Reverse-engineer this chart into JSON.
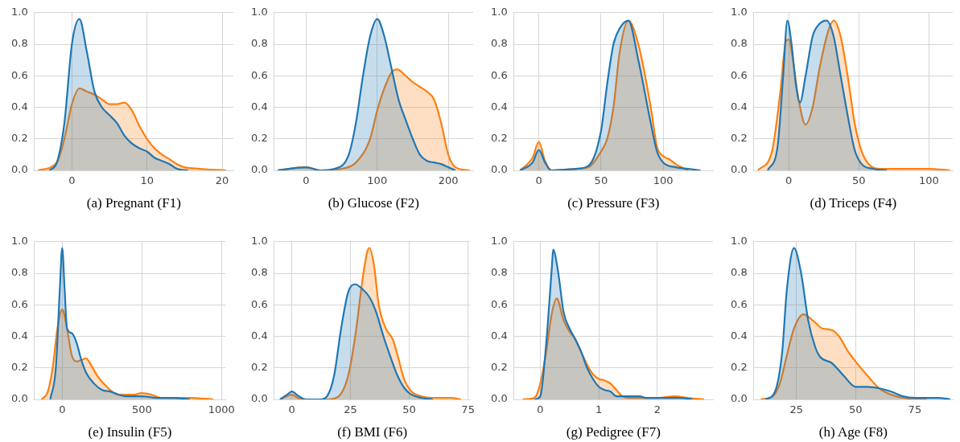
{
  "chart_data": [
    {
      "type": "area",
      "xlabel": "(a) Pregnant (F1)",
      "xlim": [
        -5,
        21.5
      ],
      "xticks": [
        0,
        10,
        20
      ],
      "ylim": [
        0,
        1
      ],
      "yticks": [
        {
          "value": 0,
          "label": "0.0"
        },
        {
          "value": 0.2,
          "label": "0.2"
        },
        {
          "value": 0.4,
          "label": "0.4"
        },
        {
          "value": 0.6,
          "label": "0.6"
        },
        {
          "value": 0.8,
          "label": "0.8"
        },
        {
          "value": 1,
          "label": "1.0"
        }
      ],
      "grid": true,
      "series": [
        {
          "color": "#1f77b4",
          "x": [
            -3,
            -2,
            -1,
            0,
            1,
            2,
            3,
            4,
            5,
            6,
            7,
            8,
            9,
            10,
            11,
            12,
            13,
            14,
            15.5
          ],
          "values": [
            0,
            0.05,
            0.3,
            0.8,
            0.96,
            0.75,
            0.5,
            0.4,
            0.35,
            0.3,
            0.22,
            0.17,
            0.14,
            0.12,
            0.08,
            0.06,
            0.04,
            0.01,
            0
          ]
        },
        {
          "color": "#ff7f0e",
          "x": [
            -4.5,
            -2,
            -1,
            0,
            1,
            2,
            3,
            4,
            5,
            6,
            7,
            8,
            9,
            10,
            11,
            12,
            13,
            14,
            15,
            17,
            20.5
          ],
          "values": [
            0,
            0.05,
            0.2,
            0.42,
            0.52,
            0.5,
            0.48,
            0.45,
            0.42,
            0.42,
            0.43,
            0.38,
            0.28,
            0.2,
            0.14,
            0.1,
            0.07,
            0.04,
            0.02,
            0.01,
            0
          ]
        }
      ]
    },
    {
      "type": "area",
      "xlabel": "(b) Glucose (F2)",
      "xlim": [
        -45,
        235
      ],
      "xticks": [
        0,
        100,
        200
      ],
      "ylim": [
        0,
        1
      ],
      "yticks": [
        {
          "value": 0,
          "label": "0.0"
        },
        {
          "value": 0.2,
          "label": "0.2"
        },
        {
          "value": 0.4,
          "label": "0.4"
        },
        {
          "value": 0.6,
          "label": "0.6"
        },
        {
          "value": 0.8,
          "label": "0.8"
        },
        {
          "value": 1,
          "label": "1.0"
        }
      ],
      "grid": true,
      "series": [
        {
          "color": "#1f77b4",
          "x": [
            -40,
            0,
            20,
            40,
            60,
            70,
            80,
            90,
            100,
            110,
            120,
            130,
            140,
            150,
            160,
            170,
            180,
            190,
            200,
            210
          ],
          "values": [
            0,
            0.02,
            0,
            0.01,
            0.1,
            0.3,
            0.6,
            0.85,
            0.96,
            0.85,
            0.65,
            0.45,
            0.32,
            0.2,
            0.1,
            0.06,
            0.05,
            0.04,
            0.02,
            0
          ]
        },
        {
          "color": "#ff7f0e",
          "x": [
            -40,
            0,
            20,
            50,
            70,
            90,
            100,
            110,
            120,
            128,
            140,
            150,
            160,
            170,
            180,
            190,
            200,
            210,
            230
          ],
          "values": [
            0,
            0.02,
            0,
            0.01,
            0.05,
            0.2,
            0.38,
            0.52,
            0.62,
            0.64,
            0.6,
            0.56,
            0.53,
            0.5,
            0.45,
            0.3,
            0.1,
            0.02,
            0
          ]
        }
      ]
    },
    {
      "type": "area",
      "xlabel": "(c) Pressure (F3)",
      "xlim": [
        -20,
        140
      ],
      "xticks": [
        0,
        50,
        100
      ],
      "ylim": [
        0,
        1
      ],
      "yticks": [
        {
          "value": 0,
          "label": "0.0"
        },
        {
          "value": 0.2,
          "label": "0.2"
        },
        {
          "value": 0.4,
          "label": "0.4"
        },
        {
          "value": 0.6,
          "label": "0.6"
        },
        {
          "value": 0.8,
          "label": "0.8"
        },
        {
          "value": 1,
          "label": "1.0"
        }
      ],
      "grid": true,
      "series": [
        {
          "color": "#1f77b4",
          "x": [
            -15,
            -5,
            0,
            5,
            10,
            30,
            40,
            50,
            55,
            60,
            65,
            72,
            80,
            90,
            95,
            100,
            110,
            120,
            130
          ],
          "values": [
            0,
            0.05,
            0.13,
            0.05,
            0,
            0.01,
            0.03,
            0.25,
            0.55,
            0.8,
            0.9,
            0.95,
            0.7,
            0.3,
            0.12,
            0.05,
            0.02,
            0.01,
            0
          ]
        },
        {
          "color": "#ff7f0e",
          "x": [
            -15,
            -5,
            0,
            5,
            10,
            30,
            40,
            50,
            55,
            60,
            65,
            72,
            80,
            90,
            95,
            100,
            105,
            110,
            120
          ],
          "values": [
            0,
            0.08,
            0.18,
            0.06,
            0,
            0.01,
            0.02,
            0.12,
            0.2,
            0.4,
            0.75,
            0.95,
            0.8,
            0.4,
            0.15,
            0.09,
            0.07,
            0.04,
            0
          ]
        }
      ]
    },
    {
      "type": "area",
      "xlabel": "(d) Triceps (F4)",
      "xlim": [
        -25,
        117
      ],
      "xticks": [
        0,
        50,
        100
      ],
      "ylim": [
        0,
        1
      ],
      "yticks": [
        {
          "value": 0,
          "label": "0.0"
        },
        {
          "value": 0.2,
          "label": "0.2"
        },
        {
          "value": 0.4,
          "label": "0.4"
        },
        {
          "value": 0.6,
          "label": "0.6"
        },
        {
          "value": 0.8,
          "label": "0.8"
        },
        {
          "value": 1,
          "label": "1.0"
        }
      ],
      "grid": true,
      "series": [
        {
          "color": "#1f77b4",
          "x": [
            -15,
            -8,
            -4,
            -1,
            2,
            5,
            8,
            12,
            17,
            22,
            27,
            32,
            37,
            42,
            47,
            52,
            60,
            70
          ],
          "values": [
            0,
            0.15,
            0.6,
            0.95,
            0.8,
            0.55,
            0.43,
            0.6,
            0.85,
            0.93,
            0.95,
            0.85,
            0.6,
            0.35,
            0.13,
            0.04,
            0.01,
            0
          ]
        },
        {
          "color": "#ff7f0e",
          "x": [
            -22,
            -12,
            -6,
            -2,
            0,
            3,
            7,
            12,
            17,
            22,
            28,
            32,
            37,
            42,
            47,
            52,
            57,
            65,
            80,
            100,
            115
          ],
          "values": [
            0,
            0.12,
            0.5,
            0.82,
            0.83,
            0.7,
            0.45,
            0.29,
            0.4,
            0.65,
            0.88,
            0.95,
            0.85,
            0.6,
            0.3,
            0.12,
            0.04,
            0.01,
            0.01,
            0.01,
            0
          ]
        }
      ]
    },
    {
      "type": "area",
      "xlabel": "(e) Insulin (F5)",
      "xlim": [
        -175,
        1025
      ],
      "xticks": [
        0,
        500,
        1000
      ],
      "ylim": [
        0,
        1
      ],
      "yticks": [
        {
          "value": 0,
          "label": "0.0"
        },
        {
          "value": 0.2,
          "label": "0.2"
        },
        {
          "value": 0.4,
          "label": "0.4"
        },
        {
          "value": 0.6,
          "label": "0.6"
        },
        {
          "value": 0.8,
          "label": "0.8"
        },
        {
          "value": 1,
          "label": "1.0"
        }
      ],
      "grid": true,
      "series": [
        {
          "color": "#1f77b4",
          "x": [
            -75,
            -40,
            -15,
            0,
            15,
            30,
            60,
            90,
            120,
            150,
            200,
            250,
            300,
            400,
            500,
            600,
            700,
            800
          ],
          "values": [
            0,
            0.2,
            0.7,
            0.96,
            0.7,
            0.45,
            0.42,
            0.36,
            0.25,
            0.17,
            0.1,
            0.06,
            0.05,
            0.02,
            0.02,
            0.01,
            0.01,
            0
          ]
        },
        {
          "color": "#ff7f0e",
          "x": [
            -130,
            -90,
            -60,
            -30,
            0,
            30,
            60,
            90,
            120,
            150,
            180,
            220,
            280,
            350,
            450,
            500,
            560,
            620,
            800,
            950
          ],
          "values": [
            0,
            0.05,
            0.2,
            0.45,
            0.57,
            0.45,
            0.28,
            0.24,
            0.25,
            0.26,
            0.22,
            0.15,
            0.08,
            0.03,
            0.03,
            0.04,
            0.03,
            0.01,
            0.01,
            0
          ]
        }
      ]
    },
    {
      "type": "area",
      "xlabel": "(f) BMI (F6)",
      "xlim": [
        -7.5,
        76
      ],
      "xticks": [
        0,
        25,
        50,
        75
      ],
      "ylim": [
        0,
        1
      ],
      "yticks": [
        {
          "value": 0,
          "label": "0.0"
        },
        {
          "value": 0.2,
          "label": "0.2"
        },
        {
          "value": 0.4,
          "label": "0.4"
        },
        {
          "value": 0.6,
          "label": "0.6"
        },
        {
          "value": 0.8,
          "label": "0.8"
        },
        {
          "value": 1,
          "label": "1.0"
        }
      ],
      "grid": true,
      "series": [
        {
          "color": "#1f77b4",
          "x": [
            -5,
            -2,
            0,
            3,
            6,
            12,
            15,
            18,
            21,
            24,
            27,
            30,
            33,
            36,
            39,
            42,
            45,
            48,
            51,
            55,
            60
          ],
          "values": [
            0,
            0.03,
            0.05,
            0.02,
            0,
            0,
            0.02,
            0.15,
            0.45,
            0.68,
            0.73,
            0.7,
            0.65,
            0.55,
            0.4,
            0.27,
            0.15,
            0.07,
            0.03,
            0.01,
            0
          ]
        },
        {
          "color": "#ff7f0e",
          "x": [
            -5,
            0,
            4,
            15,
            20,
            24,
            27,
            30,
            32,
            33,
            35,
            37,
            40,
            43,
            45,
            48,
            51,
            55,
            60,
            65,
            68,
            72
          ],
          "values": [
            0,
            0.03,
            0,
            0,
            0.02,
            0.15,
            0.4,
            0.75,
            0.93,
            0.96,
            0.85,
            0.6,
            0.45,
            0.38,
            0.28,
            0.12,
            0.05,
            0.02,
            0.01,
            0.01,
            0.01,
            0
          ]
        }
      ]
    },
    {
      "type": "area",
      "xlabel": "(g) Pedigree (F7)",
      "xlim": [
        -0.45,
        2.95
      ],
      "xticks": [
        0,
        1,
        2
      ],
      "ylim": [
        0,
        1
      ],
      "yticks": [
        {
          "value": 0,
          "label": "0.0"
        },
        {
          "value": 0.2,
          "label": "0.2"
        },
        {
          "value": 0.4,
          "label": "0.4"
        },
        {
          "value": 0.6,
          "label": "0.6"
        },
        {
          "value": 0.8,
          "label": "0.8"
        },
        {
          "value": 1,
          "label": "1.0"
        }
      ],
      "grid": true,
      "series": [
        {
          "color": "#1f77b4",
          "x": [
            -0.1,
            0,
            0.1,
            0.2,
            0.22,
            0.3,
            0.4,
            0.5,
            0.6,
            0.7,
            0.8,
            0.9,
            1.0,
            1.1,
            1.2,
            1.3,
            1.4,
            1.6,
            1.7,
            1.8,
            2.0,
            2.4,
            2.6
          ],
          "values": [
            0,
            0.02,
            0.35,
            0.85,
            0.95,
            0.82,
            0.55,
            0.45,
            0.38,
            0.3,
            0.2,
            0.13,
            0.08,
            0.06,
            0.05,
            0.02,
            0.02,
            0.02,
            0.02,
            0.01,
            0.01,
            0.01,
            0
          ]
        },
        {
          "color": "#ff7f0e",
          "x": [
            -0.3,
            -0.1,
            0,
            0.1,
            0.2,
            0.28,
            0.4,
            0.5,
            0.6,
            0.7,
            0.8,
            0.9,
            1.0,
            1.1,
            1.2,
            1.3,
            1.4,
            1.5,
            2.0,
            2.3,
            2.5,
            2.8
          ],
          "values": [
            0,
            0.01,
            0.1,
            0.3,
            0.55,
            0.64,
            0.5,
            0.43,
            0.38,
            0.3,
            0.22,
            0.16,
            0.13,
            0.12,
            0.1,
            0.06,
            0.02,
            0.01,
            0.01,
            0.02,
            0.01,
            0
          ]
        }
      ]
    },
    {
      "type": "area",
      "xlabel": "(h) Age (F8)",
      "xlim": [
        7,
        91
      ],
      "xticks": [
        25,
        50,
        75
      ],
      "ylim": [
        0,
        1
      ],
      "yticks": [
        {
          "value": 0,
          "label": "0.0"
        },
        {
          "value": 0.2,
          "label": "0.2"
        },
        {
          "value": 0.4,
          "label": "0.4"
        },
        {
          "value": 0.6,
          "label": "0.6"
        },
        {
          "value": 0.8,
          "label": "0.8"
        },
        {
          "value": 1,
          "label": "1.0"
        }
      ],
      "grid": true,
      "series": [
        {
          "color": "#1f77b4",
          "x": [
            12,
            16,
            19,
            21,
            24,
            27,
            30,
            33,
            35,
            40,
            45,
            50,
            55,
            60,
            65,
            70,
            75,
            85,
            90
          ],
          "values": [
            0,
            0.05,
            0.3,
            0.7,
            0.96,
            0.8,
            0.5,
            0.33,
            0.27,
            0.23,
            0.15,
            0.08,
            0.08,
            0.07,
            0.05,
            0.02,
            0.01,
            0.01,
            0
          ]
        },
        {
          "color": "#ff7f0e",
          "x": [
            10,
            15,
            18,
            21,
            24,
            28,
            32,
            36,
            40,
            43,
            47,
            50,
            55,
            60,
            65,
            70,
            80
          ],
          "values": [
            0,
            0.02,
            0.1,
            0.28,
            0.45,
            0.54,
            0.5,
            0.45,
            0.44,
            0.4,
            0.3,
            0.24,
            0.15,
            0.07,
            0.03,
            0.01,
            0
          ]
        }
      ]
    }
  ]
}
